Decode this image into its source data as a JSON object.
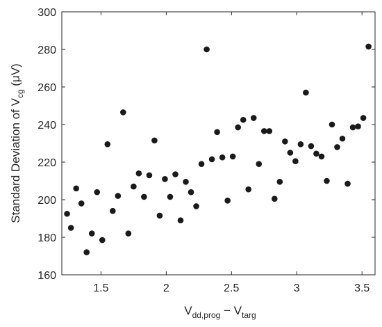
{
  "chart_data": {
    "type": "scatter",
    "title": "",
    "xlabel": {
      "main": "V",
      "sub1": "dd,prog",
      "mid": " − V",
      "sub2": "targ"
    },
    "ylabel": {
      "pre": "Standard Deviation of V",
      "sub": "cg",
      "post": " (μV)"
    },
    "xlim": [
      1.2,
      3.6
    ],
    "ylim": [
      160,
      300
    ],
    "xticks": [
      1.5,
      2,
      2.5,
      3,
      3.5
    ],
    "xtick_labels": [
      "1.5",
      "2",
      "2.5",
      "3",
      "3.5"
    ],
    "yticks": [
      160,
      180,
      200,
      220,
      240,
      260,
      280,
      300
    ],
    "ytick_labels": [
      "160",
      "180",
      "200",
      "220",
      "240",
      "260",
      "280",
      "300"
    ],
    "grid": false,
    "marker_color": "#1a1a1a",
    "x": [
      1.24,
      1.27,
      1.31,
      1.35,
      1.39,
      1.43,
      1.47,
      1.51,
      1.55,
      1.59,
      1.63,
      1.67,
      1.71,
      1.75,
      1.79,
      1.83,
      1.87,
      1.91,
      1.95,
      1.99,
      2.03,
      2.07,
      2.11,
      2.15,
      2.19,
      2.23,
      2.27,
      2.31,
      2.35,
      2.39,
      2.43,
      2.47,
      2.51,
      2.55,
      2.59,
      2.63,
      2.67,
      2.71,
      2.75,
      2.79,
      2.83,
      2.87,
      2.91,
      2.95,
      2.99,
      3.03,
      3.07,
      3.11,
      3.15,
      3.19,
      3.23,
      3.27,
      3.31,
      3.35,
      3.39,
      3.43,
      3.47,
      3.51,
      3.55
    ],
    "y": [
      192.5,
      185,
      206,
      198,
      172,
      182,
      204,
      178.5,
      229.5,
      194,
      202,
      246.5,
      182,
      207,
      214,
      201.5,
      213,
      231.5,
      191.5,
      211,
      201.5,
      213.5,
      189,
      209.5,
      204,
      196.5,
      219,
      280,
      221.5,
      236,
      222.5,
      199.5,
      223,
      238.5,
      242.5,
      205.5,
      243.5,
      219,
      236.5,
      236.5,
      200.5,
      209.5,
      231,
      225,
      220.5,
      229.5,
      257,
      228.5,
      224.5,
      223,
      210,
      240,
      228,
      232.5,
      208.5,
      238.5,
      239,
      243.5,
      281.5
    ]
  }
}
